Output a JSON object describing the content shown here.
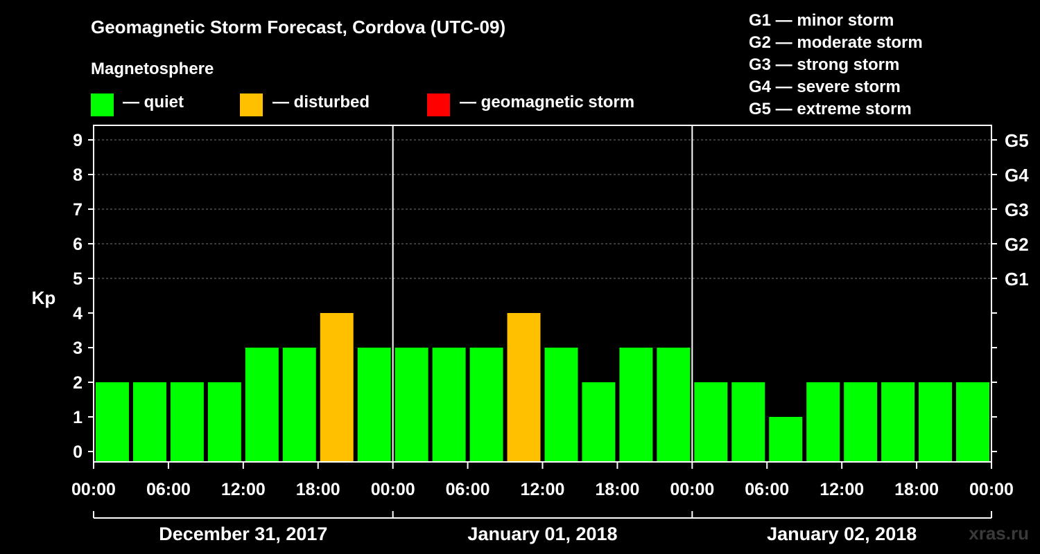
{
  "title": "Geomagnetic Storm Forecast, Cordova (UTC-09)",
  "legend": {
    "heading": "Magnetosphere",
    "items": [
      {
        "label": "— quiet",
        "color": "#00ff00"
      },
      {
        "label": "— disturbed",
        "color": "#ffc000"
      },
      {
        "label": "— geomagnetic storm",
        "color": "#ff0000"
      }
    ]
  },
  "storm_scale": [
    "G1 — minor storm",
    "G2 — moderate storm",
    "G3 — strong storm",
    "G4 — severe storm",
    "G5 — extreme storm"
  ],
  "credit": "xras.ru",
  "chart_data": {
    "type": "bar",
    "ylabel": "Kp",
    "ylim": [
      0,
      9
    ],
    "yticks": [
      0,
      1,
      2,
      3,
      4,
      5,
      6,
      7,
      8,
      9
    ],
    "right_axis_labels": [
      {
        "kp": 5,
        "label": "G1"
      },
      {
        "kp": 6,
        "label": "G2"
      },
      {
        "kp": 7,
        "label": "G3"
      },
      {
        "kp": 8,
        "label": "G4"
      },
      {
        "kp": 9,
        "label": "G5"
      }
    ],
    "xtick_labels": [
      "00:00",
      "06:00",
      "12:00",
      "18:00",
      "00:00",
      "06:00",
      "12:00",
      "18:00",
      "00:00",
      "06:00",
      "12:00",
      "18:00",
      "00:00"
    ],
    "days": [
      "December 31, 2017",
      "January 01, 2018",
      "January 02, 2018"
    ],
    "values": [
      2,
      2,
      2,
      2,
      3,
      3,
      4,
      3,
      3,
      3,
      3,
      4,
      3,
      2,
      3,
      3,
      2,
      2,
      1,
      2,
      2,
      2,
      2,
      2
    ],
    "colors": {
      "quiet": "#00ff00",
      "disturbed": "#ffc000",
      "storm": "#ff0000"
    },
    "grid": true
  }
}
